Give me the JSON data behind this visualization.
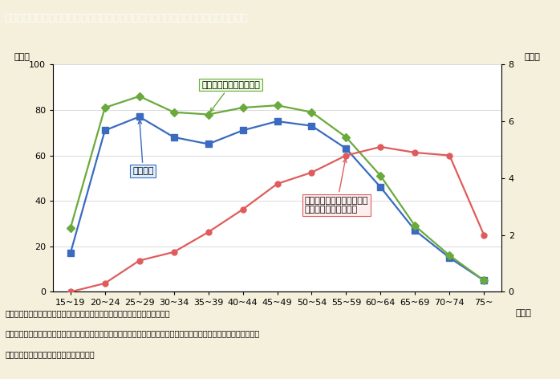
{
  "title": "第１－２－７図　女性の労働力率及び女性の各年齢階級人口に対する自営業主の比率",
  "categories": [
    "15~19",
    "20~24",
    "25~29",
    "30~34",
    "35~39",
    "40~44",
    "45~49",
    "50~54",
    "55~59",
    "60~64",
    "65~69",
    "70~74",
    "75~"
  ],
  "rodo_rate": [
    17,
    71,
    77,
    68,
    65,
    71,
    75,
    73,
    63,
    46,
    27,
    15,
    5
  ],
  "rodo_plus_rate": [
    28,
    81,
    86,
    79,
    78,
    81,
    82,
    79,
    68,
    51,
    29,
    16,
    5
  ],
  "jieis_rate": [
    0.0,
    0.3,
    1.1,
    1.4,
    2.1,
    2.9,
    3.8,
    4.2,
    4.8,
    5.1,
    4.9,
    4.8,
    2.0
  ],
  "line_rodo_color": "#3a6bbf",
  "line_rodo_plus_color": "#6aaa3c",
  "line_jieis_color": "#e05c5c",
  "marker_rodo": "s",
  "marker_rodo_plus": "D",
  "marker_jieis": "o",
  "bg_color": "#f5f0dc",
  "plot_bg_color": "#ffffff",
  "title_bg_color": "#8b7355",
  "title_text_color": "#ffffff",
  "footer_line1": "（備考）　１．総務省「労働力調査（詳細集計）」（平成２２年）より作成。",
  "footer_line2": "　　　　　２．年齢階級ごとの１５歳以上人口に占める労働力人口及び自営業主の割合を示している。自営業主には家族",
  "footer_line3": "　　　　　　従業者，内職者は含まない。",
  "left_ylabel": "（％）",
  "right_ylabel": "（％）",
  "xlabel": "（歳）",
  "label_rodo": "労働力率",
  "label_rodo_plus": "労働力率＋就業希望者率",
  "label_jieis_l1": "自営業主の年齢階級人口に",
  "label_jieis_l2": "対する比率（右目盛）"
}
